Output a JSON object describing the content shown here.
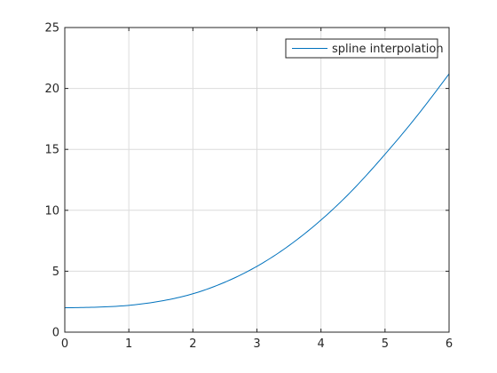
{
  "chart_data": {
    "type": "line",
    "title": "",
    "xlabel": "",
    "ylabel": "",
    "xlim": [
      0,
      6
    ],
    "ylim": [
      0,
      25
    ],
    "x_ticks": [
      0,
      1,
      2,
      3,
      4,
      5,
      6
    ],
    "y_ticks": [
      0,
      5,
      10,
      15,
      20,
      25
    ],
    "x_tick_labels": [
      "0",
      "1",
      "2",
      "3",
      "4",
      "5",
      "6"
    ],
    "y_tick_labels": [
      "0",
      "5",
      "10",
      "15",
      "20",
      "25"
    ],
    "grid": true,
    "legend": {
      "position": "top-right",
      "entries": [
        "spline interpolation"
      ]
    },
    "series": [
      {
        "name": "spline interpolation",
        "color": "#0072BD",
        "x": [
          0,
          0.5,
          1,
          1.5,
          2,
          2.5,
          3,
          3.5,
          4,
          4.5,
          5,
          5.5,
          6
        ],
        "y": [
          2.0,
          2.05,
          2.2,
          2.55,
          3.15,
          4.1,
          5.4,
          7.1,
          9.2,
          11.7,
          14.6,
          17.75,
          21.2
        ]
      }
    ]
  }
}
